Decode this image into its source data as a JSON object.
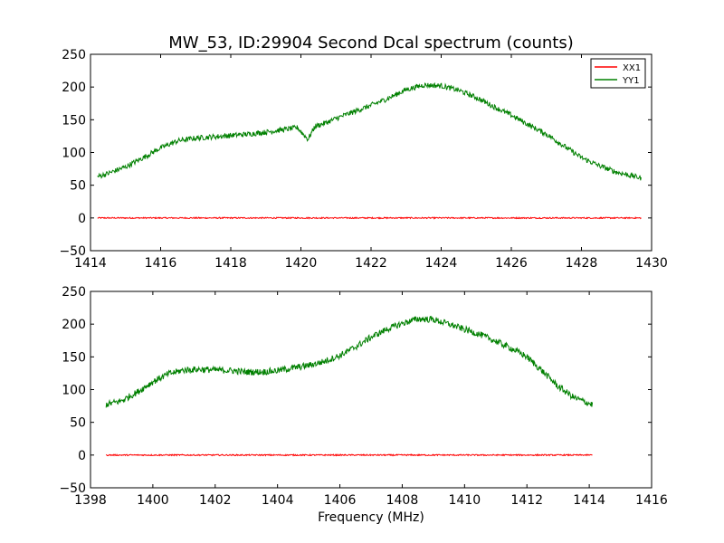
{
  "figure": {
    "title": "MW_53, ID:29904 Second Dcal spectrum (counts)",
    "xlabel": "Frequency (MHz)"
  },
  "chart_data": [
    {
      "type": "line",
      "title": "MW_53, ID:29904 Second Dcal spectrum (counts)",
      "xlabel": "",
      "ylabel": "",
      "xlim": [
        1414,
        1430
      ],
      "ylim": [
        -50,
        250
      ],
      "xticks": [
        "1414",
        "1416",
        "1418",
        "1420",
        "1422",
        "1424",
        "1426",
        "1428",
        "1430"
      ],
      "yticks": [
        "−50",
        "0",
        "50",
        "100",
        "150",
        "200",
        "250"
      ],
      "legend": {
        "position": "top-right",
        "entries": [
          "XX1",
          "YY1"
        ]
      },
      "grid": false,
      "series": [
        {
          "name": "XX1",
          "color": "#ff0000",
          "x": [
            1414.2,
            1429.7
          ],
          "y": [
            0,
            0
          ],
          "noise": 1
        },
        {
          "name": "YY1",
          "color": "#008000",
          "x": [
            1414.2,
            1414.5,
            1415.0,
            1415.5,
            1416.0,
            1416.5,
            1417.0,
            1417.5,
            1418.0,
            1418.5,
            1419.0,
            1419.5,
            1419.9,
            1420.2,
            1420.4,
            1420.7,
            1421.0,
            1421.5,
            1422.0,
            1422.5,
            1423.0,
            1423.5,
            1424.0,
            1424.5,
            1425.0,
            1425.5,
            1426.0,
            1426.5,
            1427.0,
            1427.5,
            1428.0,
            1428.5,
            1429.0,
            1429.7
          ],
          "y": [
            63,
            68,
            78,
            92,
            107,
            118,
            122,
            124,
            126,
            128,
            131,
            135,
            138,
            120,
            140,
            145,
            152,
            162,
            172,
            183,
            196,
            203,
            202,
            195,
            184,
            170,
            157,
            142,
            128,
            110,
            92,
            80,
            70,
            61
          ],
          "noise": 4
        }
      ]
    },
    {
      "type": "line",
      "title": "",
      "xlabel": "Frequency (MHz)",
      "ylabel": "",
      "xlim": [
        1398,
        1416
      ],
      "ylim": [
        -50,
        250
      ],
      "xticks": [
        "1398",
        "1400",
        "1402",
        "1404",
        "1406",
        "1408",
        "1410",
        "1412",
        "1414",
        "1416"
      ],
      "yticks": [
        "−50",
        "0",
        "50",
        "100",
        "150",
        "200",
        "250"
      ],
      "legend": null,
      "grid": false,
      "series": [
        {
          "name": "",
          "color": "#ff0000",
          "x": [
            1398.5,
            1414.1
          ],
          "y": [
            0,
            0
          ],
          "noise": 1
        },
        {
          "name": "",
          "color": "#008000",
          "x": [
            1398.5,
            1399.0,
            1399.5,
            1400.0,
            1400.5,
            1401.0,
            1401.5,
            1402.0,
            1402.5,
            1403.0,
            1403.5,
            1404.0,
            1404.5,
            1405.0,
            1405.5,
            1406.0,
            1406.5,
            1407.0,
            1407.5,
            1408.0,
            1408.5,
            1409.0,
            1409.5,
            1410.0,
            1410.5,
            1411.0,
            1411.5,
            1412.0,
            1412.5,
            1413.0,
            1413.5,
            1414.1
          ],
          "y": [
            77,
            83,
            96,
            112,
            124,
            130,
            131,
            130,
            129,
            127,
            127,
            129,
            133,
            137,
            143,
            152,
            165,
            180,
            192,
            201,
            208,
            207,
            200,
            192,
            184,
            174,
            163,
            150,
            128,
            105,
            88,
            77
          ],
          "noise": 5
        }
      ]
    }
  ]
}
